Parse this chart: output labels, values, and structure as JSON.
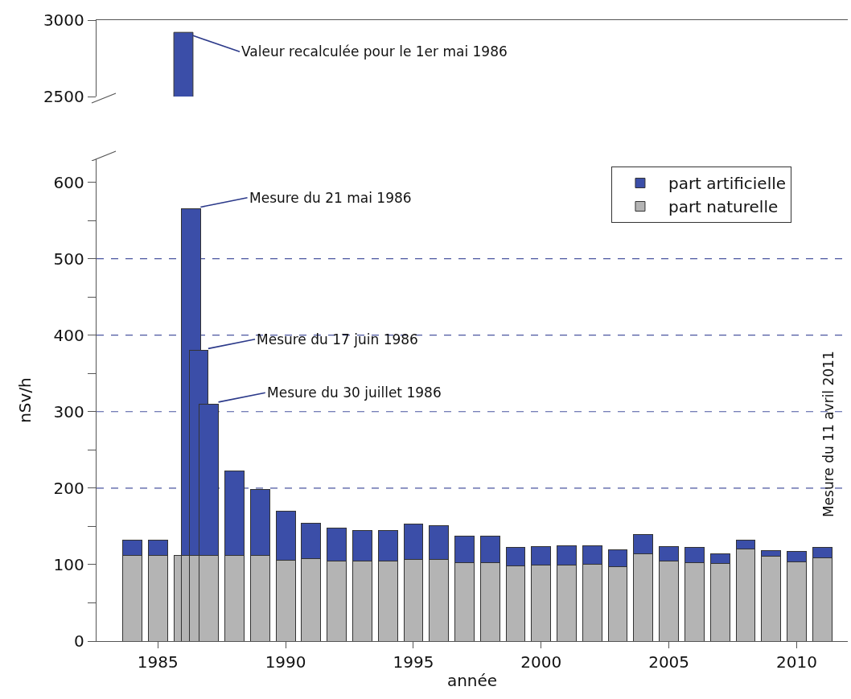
{
  "chart_data": [
    {
      "type": "bar",
      "x": [
        1986
      ],
      "series": [
        {
          "color": "#3b4ea8",
          "values": [
            2920
          ]
        }
      ],
      "ylim": [
        2500,
        3000
      ],
      "yticks": [
        2500,
        3000
      ],
      "xlim": [
        1982.6,
        2012
      ],
      "tick_labels": "y",
      "grid": false,
      "legend": false,
      "annotations": [
        {
          "text": "Valeur recalculée pour le 1er mai 1986",
          "x": 1986,
          "y": 2920
        }
      ]
    },
    {
      "type": "bar",
      "stacked": true,
      "x": [
        1984,
        1985,
        1986,
        1986.3,
        1986.6,
        1987,
        1988,
        1989,
        1990,
        1991,
        1992,
        1993,
        1994,
        1995,
        1996,
        1997,
        1998,
        1999,
        2000,
        2001,
        2002,
        2003,
        2004,
        2005,
        2006,
        2007,
        2008,
        2009,
        2010,
        2011
      ],
      "series": [
        {
          "name": "part naturelle",
          "color": "#b4b4b4",
          "values": [
            112,
            112,
            112,
            112,
            112,
            112,
            112,
            112,
            106,
            108,
            105,
            105,
            105,
            107,
            107,
            103,
            103,
            98,
            99,
            99,
            100,
            97,
            114,
            105,
            103,
            101,
            120,
            111,
            104,
            109
          ]
        },
        {
          "name": "part artificielle",
          "color": "#3b4ea8",
          "values": [
            20,
            20,
            null,
            453,
            268,
            198,
            110,
            86,
            64,
            46,
            43,
            40,
            40,
            46,
            44,
            34,
            34,
            25,
            25,
            26,
            25,
            22,
            25,
            19,
            20,
            13,
            12,
            7,
            13,
            14
          ]
        }
      ],
      "xlabel": "année",
      "ylabel": "nSv/h",
      "xlim": [
        1982.6,
        2012
      ],
      "xticks": [
        1985,
        1990,
        1995,
        2000,
        2005,
        2010
      ],
      "ylim": [
        0,
        630
      ],
      "yticks": [
        0,
        {
          "value": 50,
          "label": null
        },
        100,
        {
          "value": 150,
          "label": null
        },
        200,
        {
          "value": 250,
          "label": null
        },
        300,
        {
          "value": 350,
          "label": null
        },
        400,
        {
          "value": 450,
          "label": null
        },
        500,
        {
          "value": 550,
          "label": null
        },
        600
      ],
      "grid": false,
      "legend": "top right",
      "ref_lines": [
        {
          "axis": "y",
          "value": 200,
          "color": "#4a55a0",
          "line_style": "dashed"
        },
        {
          "axis": "y",
          "value": 300,
          "color": "#4a55a0",
          "line_style": "dashed"
        },
        {
          "axis": "y",
          "value": 400,
          "color": "#4a55a0",
          "line_style": "dashed"
        },
        {
          "axis": "y",
          "value": 500,
          "color": "#4a55a0",
          "line_style": "dashed"
        }
      ],
      "annotations": [
        {
          "text": "Mesure du 21 mai 1986",
          "x": 1986.3,
          "y": 565
        },
        {
          "text": "Mesure du 17 juin 1986",
          "x": 1986.6,
          "y": 380
        },
        {
          "text": "Mesure du 30 juillet 1986",
          "x": 1987,
          "y": 310
        },
        "Mesure du 11 avril 2011"
      ]
    }
  ]
}
